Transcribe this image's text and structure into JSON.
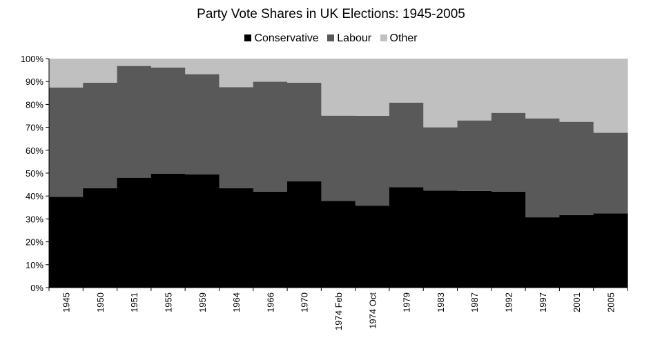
{
  "chart_data": {
    "type": "area",
    "stacked": true,
    "title": "Party Vote Shares in UK Elections: 1945-2005",
    "legend_position": "top",
    "categories": [
      "1945",
      "1950",
      "1951",
      "1955",
      "1959",
      "1964",
      "1966",
      "1970",
      "1974 Feb",
      "1974 Oct",
      "1979",
      "1983",
      "1987",
      "1992",
      "1997",
      "2001",
      "2005"
    ],
    "series": [
      {
        "name": "Conservative",
        "color": "#000000",
        "values": [
          39.6,
          43.4,
          48.0,
          49.7,
          49.4,
          43.4,
          41.9,
          46.4,
          37.9,
          35.8,
          43.9,
          42.4,
          42.2,
          41.9,
          30.7,
          31.7,
          32.4
        ]
      },
      {
        "name": "Labour",
        "color": "#595959",
        "values": [
          47.8,
          46.1,
          48.8,
          46.4,
          43.8,
          44.1,
          48.0,
          43.1,
          37.2,
          39.2,
          36.9,
          27.6,
          30.8,
          34.4,
          43.2,
          40.7,
          35.2
        ]
      },
      {
        "name": "Other",
        "color": "#c0c0c0",
        "values": [
          12.6,
          10.5,
          3.2,
          3.9,
          6.8,
          12.5,
          10.1,
          10.5,
          24.9,
          25.0,
          19.2,
          30.0,
          27.0,
          23.7,
          26.1,
          27.6,
          32.4
        ]
      }
    ],
    "y_ticks": [
      "0%",
      "10%",
      "20%",
      "30%",
      "40%",
      "50%",
      "60%",
      "70%",
      "80%",
      "90%",
      "100%"
    ],
    "ylim": [
      0,
      100
    ],
    "grid": false
  }
}
